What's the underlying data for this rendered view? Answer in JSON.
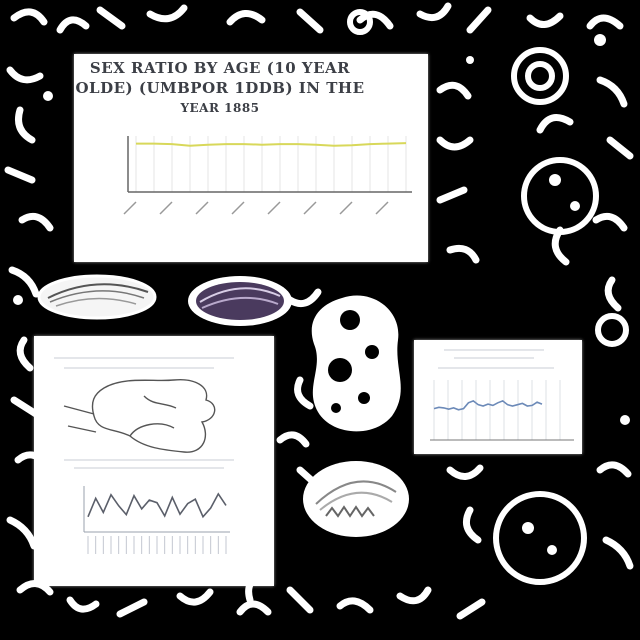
{
  "collage": {
    "background_color": "#000000",
    "doodle_color": "#ffffff"
  },
  "main_chart": {
    "title_line1": "SEX RATIO BY AGE (10 YEAR",
    "title_line2": "OLDE) (UMBPOR 1DDB) IN THE",
    "title_line3": "YEAR 1885",
    "line_color": "#d8d85a",
    "chart_data": {
      "type": "line",
      "categories": [
        "",
        "",
        "",
        "",
        "",
        "",
        "",
        "",
        "",
        "",
        "",
        "",
        "",
        "",
        "",
        ""
      ],
      "series": [
        {
          "values": [
            0.95,
            0.95,
            0.94,
            0.91,
            0.93,
            0.94,
            0.94,
            0.93,
            0.94,
            0.94,
            0.93,
            0.91,
            0.92,
            0.94,
            0.95,
            0.96
          ]
        }
      ],
      "ylim": [
        0,
        1.1
      ]
    }
  },
  "small_chart": {
    "line_color": "#6c8ab8",
    "chart_data": {
      "type": "line",
      "series": [
        {
          "values": [
            0.46,
            0.48,
            0.47,
            0.45,
            0.47,
            0.44,
            0.46,
            0.55,
            0.58,
            0.52,
            0.5,
            0.53,
            0.51,
            0.55,
            0.58,
            0.52,
            0.5,
            0.52,
            0.54,
            0.5,
            0.51,
            0.56,
            0.53
          ]
        }
      ],
      "ylim": [
        0,
        1
      ]
    }
  },
  "map_card": {
    "line_color": "#5b5f6a",
    "chart_data": {
      "type": "line",
      "series": [
        {
          "values": [
            0.3,
            0.72,
            0.4,
            0.8,
            0.55,
            0.35,
            0.78,
            0.48,
            0.68,
            0.62,
            0.32,
            0.74,
            0.36,
            0.6,
            0.7,
            0.3,
            0.5,
            0.82,
            0.56
          ]
        }
      ],
      "ylim": [
        0,
        1
      ]
    }
  }
}
